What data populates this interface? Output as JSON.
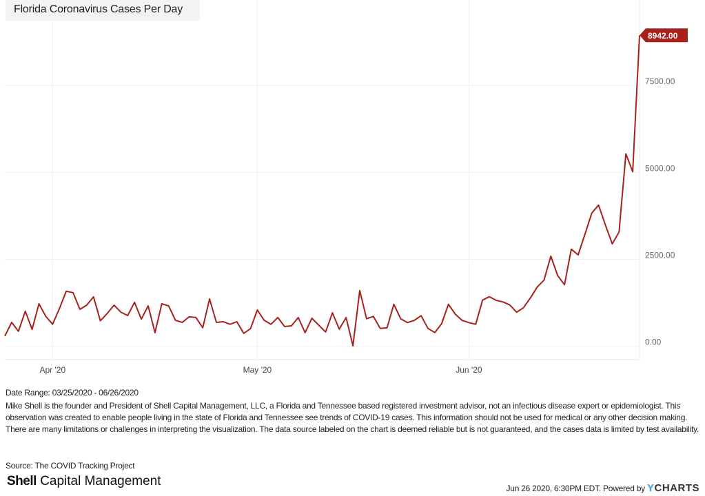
{
  "title": "Florida Coronavirus Cases Per Day",
  "chart_data": {
    "type": "line",
    "title": "Florida Coronavirus Cases Per Day",
    "start_date": "2020-03-25",
    "end_date": "2020-06-26",
    "series": [
      {
        "name": "Florida Coronavirus Cases Per Day",
        "color": "#a8201a",
        "values": [
          293,
          688,
          433,
          1008,
          488,
          1223,
          863,
          633,
          1083,
          1583,
          1543,
          1063,
          1183,
          1423,
          733,
          943,
          1183,
          983,
          883,
          1263,
          783,
          1163,
          393,
          1223,
          1163,
          748,
          688,
          848,
          828,
          533,
          1363,
          688,
          708,
          633,
          708,
          373,
          508,
          1043,
          748,
          633,
          828,
          568,
          588,
          828,
          393,
          808,
          608,
          413,
          963,
          493,
          828,
          13,
          1605,
          793,
          860,
          515,
          530,
          1208,
          793,
          681,
          747,
          880,
          515,
          396,
          648,
          1208,
          925,
          747,
          681,
          634,
          1327,
          1426,
          1321,
          1275,
          1189,
          978,
          1109,
          1387,
          1704,
          1902,
          2595,
          2034,
          1771,
          2793,
          2629,
          3223,
          3831,
          4061,
          3487,
          2946,
          3289,
          5535,
          5020,
          8942
        ]
      }
    ],
    "last_value_label": "8942.00",
    "y_ticks": [
      0,
      2500,
      5000,
      7500
    ],
    "y_tick_labels": [
      "0.00",
      "2500.00",
      "5000.00",
      "7500.00"
    ],
    "ylim": [
      0,
      9800
    ],
    "x_ticks": [
      {
        "date": "2020-04-01",
        "label": "Apr '20"
      },
      {
        "date": "2020-05-01",
        "label": "May '20"
      },
      {
        "date": "2020-06-01",
        "label": "Jun '20"
      }
    ],
    "xlabel": "",
    "ylabel": "",
    "grid": true,
    "y_axis_side": "right"
  },
  "date_range": "Date Range: 03/25/2020 - 06/26/2020",
  "disclaimer": "Mike Shell is the founder and President of Shell Capital Management, LLC, a Florida and Tennessee based registered investment advisor, not an infectious disease expert or epidemiologist. This observation was created to enable people living in the state of Florida and Tennessee see trends of COVID-19 cases. This information should not be used for medical or any other decision making. There are many limitations or challenges in interpreting the visualization. The data source labeled on the chart is deemed reliable but is not guaranteed, and the cases data is limited by test availability.",
  "source": "Source: The COVID Tracking Project",
  "logo": {
    "bold": "Shell",
    "rest": "Capital Management"
  },
  "footer": {
    "timestamp": "Jun 26 2020, 6:30PM EDT. Powered by",
    "brand_y": "Y",
    "brand_rest": "CHARTS"
  }
}
